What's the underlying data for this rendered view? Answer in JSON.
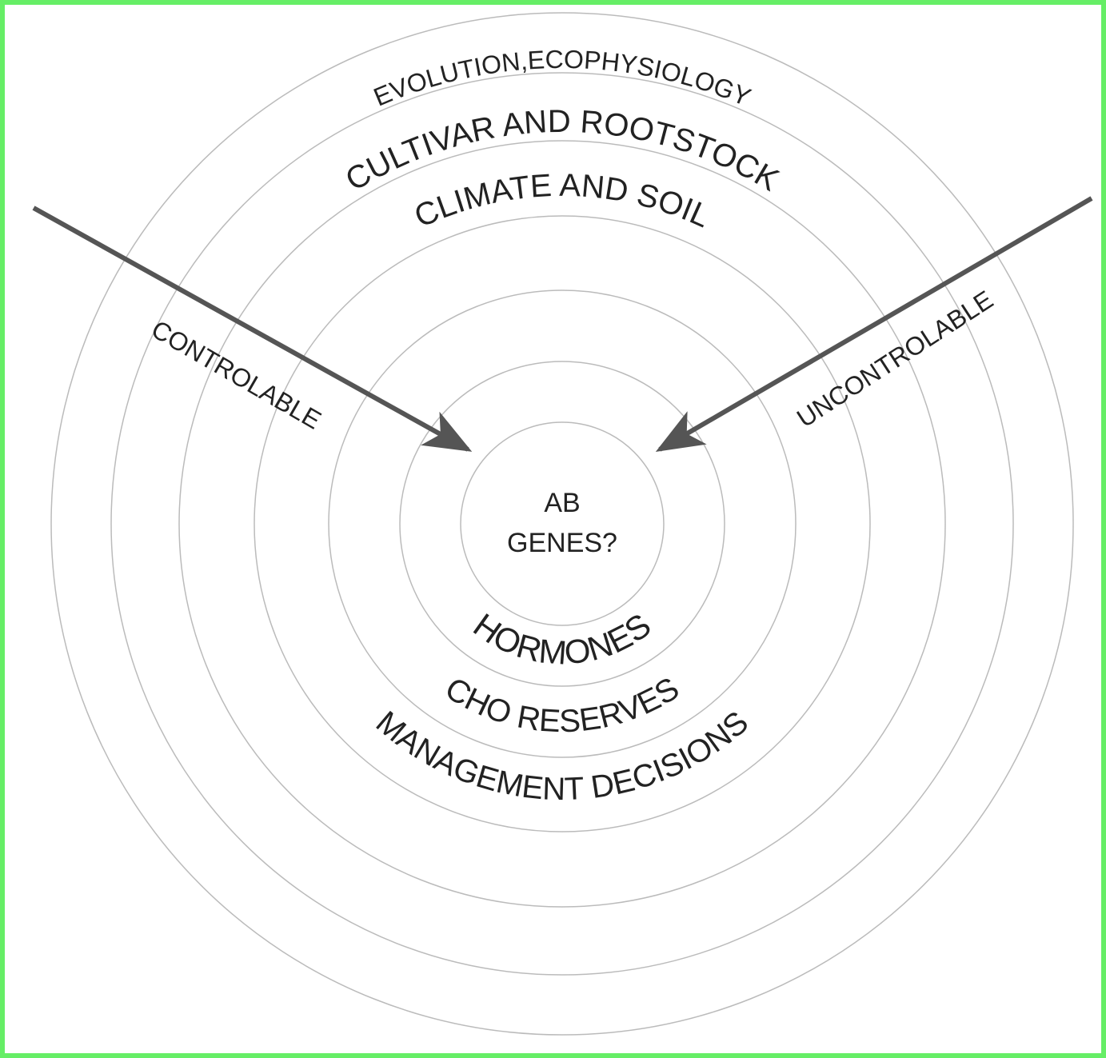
{
  "rings": {
    "outer": "EVOLUTION,ECOPHYSIOLOGY",
    "cultivar": "CULTIVAR AND ROOTSTOCK",
    "climate": "CLIMATE AND SOIL",
    "hormones": "HORMONES",
    "cho": "CHO RESERVES",
    "management": "MANAGEMENT DECISIONS"
  },
  "center": {
    "line1": "AB",
    "line2": "GENES?"
  },
  "arrows": {
    "left": "CONTROLABLE",
    "right": "UNCONTROLABLE"
  }
}
